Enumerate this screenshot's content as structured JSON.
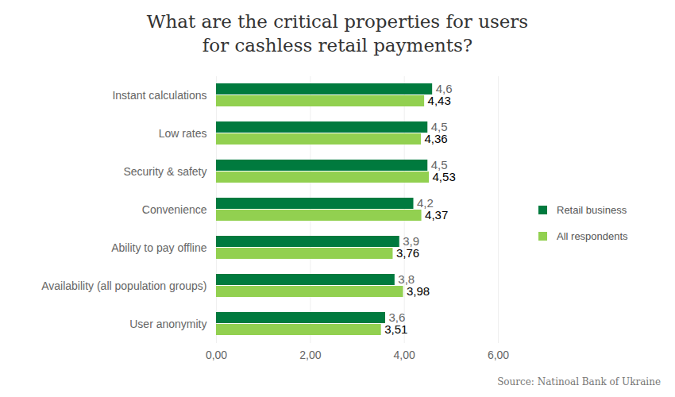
{
  "chart_data": {
    "type": "bar",
    "orientation": "horizontal",
    "title": "What are the critical properties for users\nfor cashless retail payments?",
    "caption": "Source: Natinoal Bank of Ukraine",
    "categories": [
      "Instant calculations",
      "Low rates",
      "Security & safety",
      "Convenience",
      "Ability to pay offline",
      "Availability (all population groups)",
      "User anonymity"
    ],
    "series": [
      {
        "name": "Retail business",
        "color": "#007a3e",
        "values": [
          4.6,
          4.5,
          4.5,
          4.2,
          3.9,
          3.8,
          3.6
        ],
        "value_labels": [
          "4,6",
          "4,5",
          "4,5",
          "4,2",
          "3,9",
          "3,8",
          "3,6"
        ]
      },
      {
        "name": "All respondents",
        "color": "#92d050",
        "values": [
          4.43,
          4.36,
          4.53,
          4.37,
          3.76,
          3.98,
          3.51
        ],
        "value_labels": [
          "4,43",
          "4,36",
          "4,53",
          "4,37",
          "3,76",
          "3,98",
          "3,51"
        ]
      }
    ],
    "xlim": [
      0,
      6
    ],
    "xticks": [
      {
        "value": 0,
        "label": "0,00"
      },
      {
        "value": 2,
        "label": "2,00"
      },
      {
        "value": 4,
        "label": "4,00"
      },
      {
        "value": 6,
        "label": "6,00"
      }
    ],
    "grid": true,
    "data_labels": true,
    "legend": "right"
  }
}
